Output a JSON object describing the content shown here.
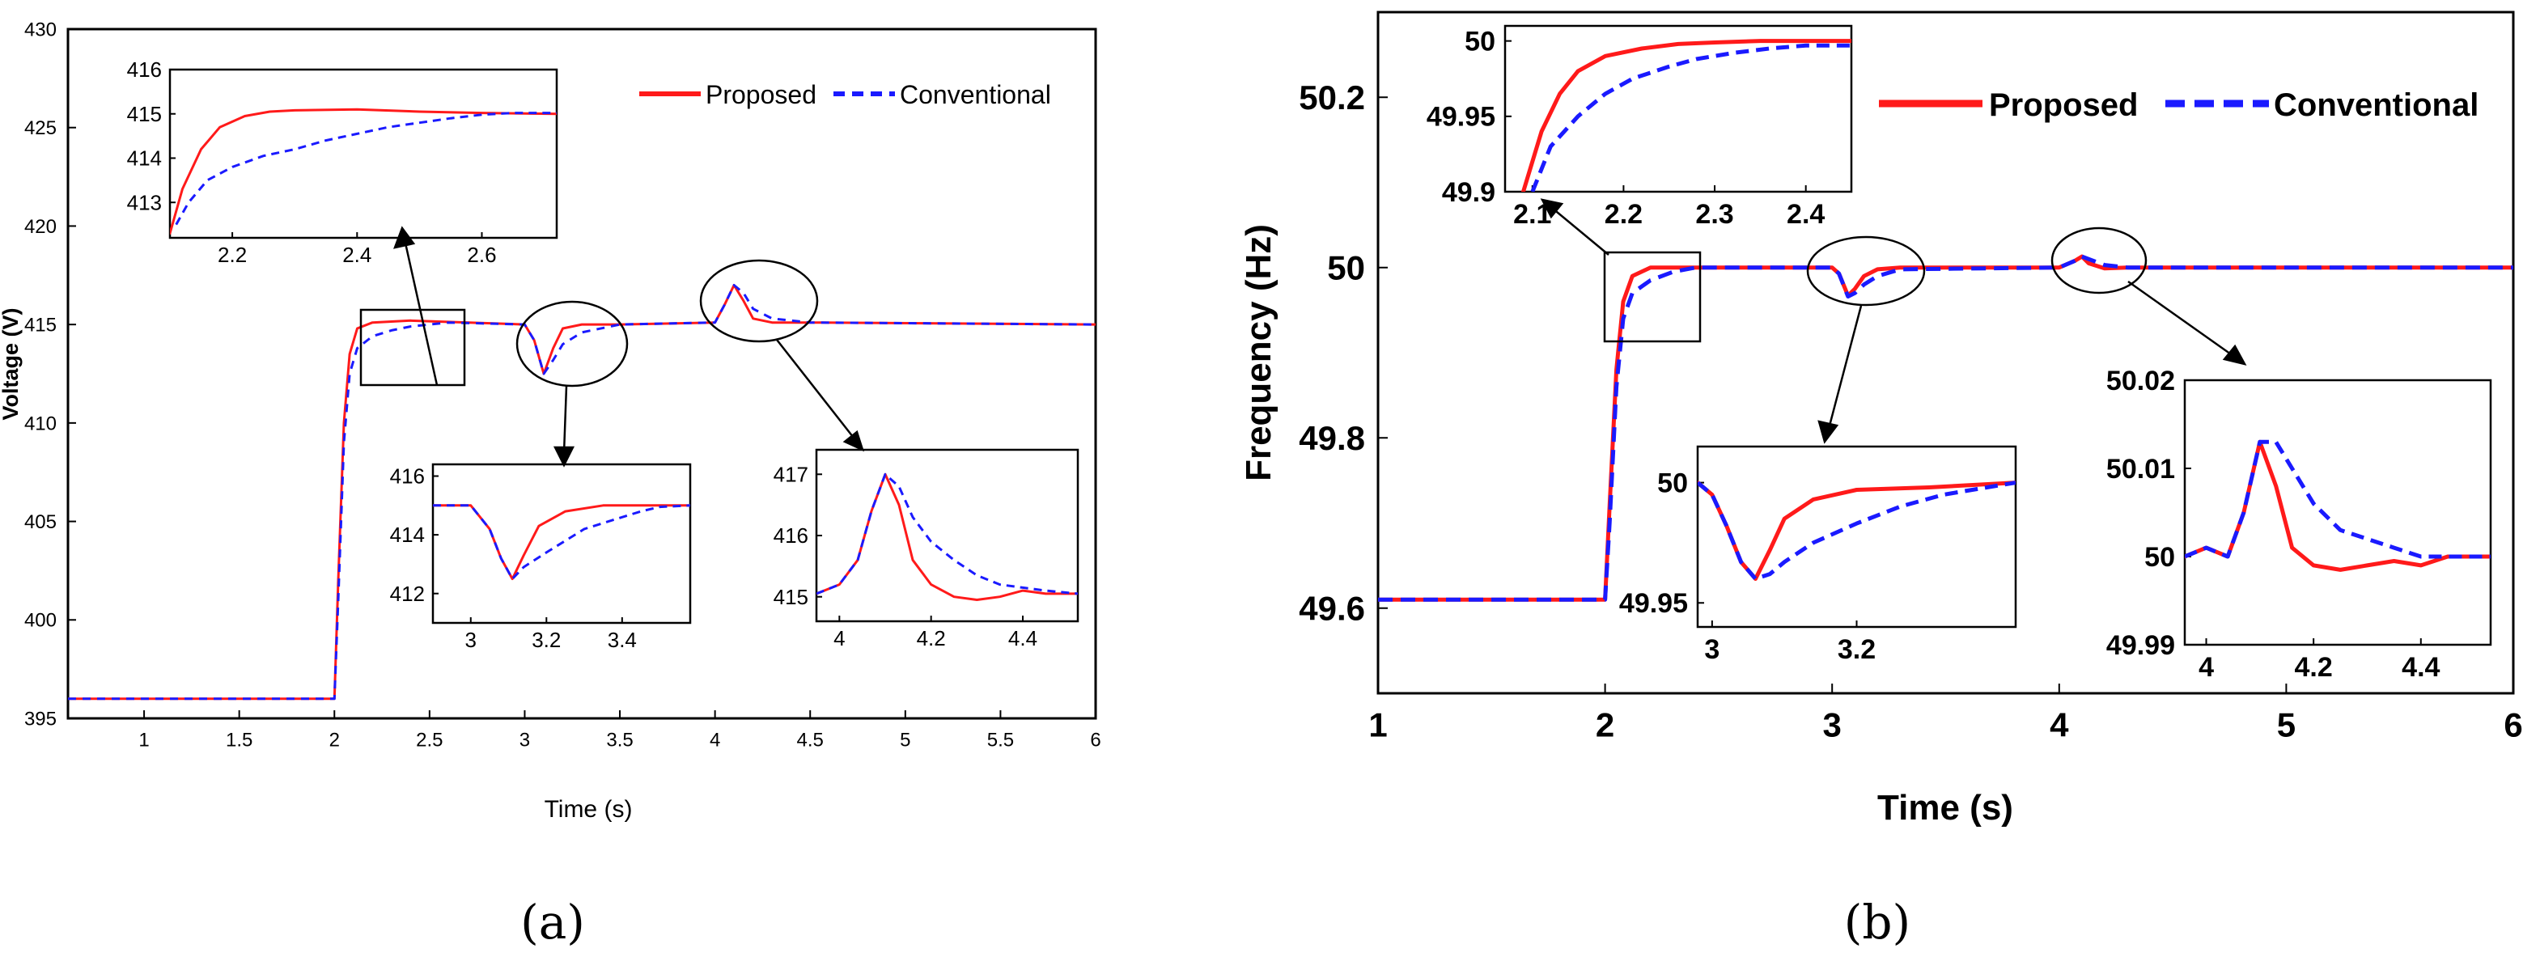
{
  "colors": {
    "proposed": "#ff1a1a",
    "conventional": "#1a1aff",
    "axes": "#000000",
    "background": "#ffffff"
  },
  "legend": {
    "proposed": "Proposed",
    "conventional": "Conventional"
  },
  "panel_a": {
    "caption": "(a)",
    "xlabel": "Time (s)",
    "ylabel": "Voltage (V)"
  },
  "panel_b": {
    "caption": "(b)",
    "xlabel": "Time (s)",
    "ylabel": "Frequency (Hz)"
  },
  "chart_data": [
    {
      "id": "a-main",
      "type": "line",
      "title": "",
      "xlabel": "Time (s)",
      "ylabel": "Voltage (V)",
      "xlim": [
        0.6,
        6
      ],
      "ylim": [
        395,
        430
      ],
      "xticks": [
        1,
        1.5,
        2,
        2.5,
        3,
        3.5,
        4,
        4.5,
        5,
        5.5,
        6
      ],
      "xtick_labels": [
        "1",
        "1.5",
        "2",
        "2.5",
        "3",
        "3.5",
        "4",
        "4.5",
        "5",
        "5.5",
        "6"
      ],
      "yticks": [
        395,
        400,
        405,
        410,
        415,
        420,
        425,
        430
      ],
      "ytick_labels": [
        "395",
        "400",
        "405",
        "410",
        "415",
        "420",
        "425",
        "430"
      ],
      "legend_position": "top-right",
      "series": [
        {
          "name": "Proposed",
          "x": [
            0.6,
            2.0,
            2.02,
            2.05,
            2.08,
            2.12,
            2.2,
            2.4,
            3.0,
            3.05,
            3.1,
            3.15,
            3.2,
            3.3,
            3.5,
            4.0,
            4.05,
            4.1,
            4.15,
            4.2,
            4.3,
            4.5,
            6.0
          ],
          "y": [
            396,
            396,
            402,
            410,
            413.5,
            414.8,
            415.1,
            415.2,
            415,
            414.2,
            412.5,
            413.8,
            414.8,
            415,
            415,
            415.1,
            416,
            417,
            416.2,
            415.3,
            415.1,
            415.1,
            415
          ]
        },
        {
          "name": "Conventional",
          "x": [
            0.6,
            2.0,
            2.02,
            2.05,
            2.08,
            2.12,
            2.2,
            2.3,
            2.4,
            2.6,
            3.0,
            3.05,
            3.1,
            3.15,
            3.2,
            3.3,
            3.5,
            4.0,
            4.05,
            4.1,
            4.15,
            4.2,
            4.3,
            4.5,
            6.0
          ],
          "y": [
            396,
            396,
            401,
            409,
            412.5,
            413.8,
            414.4,
            414.7,
            414.9,
            415.1,
            415,
            414.2,
            412.5,
            413.2,
            414,
            414.6,
            415,
            415.1,
            416,
            417,
            416.6,
            415.8,
            415.3,
            415.1,
            415
          ]
        }
      ]
    },
    {
      "id": "a-inset-1",
      "type": "line",
      "title": "",
      "xlabel": "",
      "ylabel": "",
      "xlim": [
        2.1,
        2.72
      ],
      "ylim": [
        412.2,
        416
      ],
      "xticks": [
        2.2,
        2.4,
        2.6
      ],
      "xtick_labels": [
        "2.2",
        "2.4",
        "2.6"
      ],
      "yticks": [
        413,
        414,
        415,
        416
      ],
      "ytick_labels": [
        "413",
        "414",
        "415",
        "416"
      ],
      "series": [
        {
          "name": "Proposed",
          "x": [
            2.1,
            2.12,
            2.15,
            2.18,
            2.22,
            2.26,
            2.3,
            2.4,
            2.5,
            2.6,
            2.72
          ],
          "y": [
            412.3,
            413.3,
            414.2,
            414.7,
            414.95,
            415.05,
            415.08,
            415.1,
            415.05,
            415.02,
            415
          ]
        },
        {
          "name": "Conventional",
          "x": [
            2.11,
            2.13,
            2.16,
            2.2,
            2.25,
            2.3,
            2.35,
            2.4,
            2.45,
            2.5,
            2.55,
            2.6,
            2.65,
            2.72
          ],
          "y": [
            412.5,
            413.0,
            413.5,
            413.8,
            414.05,
            414.2,
            414.4,
            414.55,
            414.7,
            414.8,
            414.9,
            414.98,
            415.02,
            415.02
          ]
        }
      ]
    },
    {
      "id": "a-inset-2",
      "type": "line",
      "title": "",
      "xlabel": "",
      "ylabel": "",
      "xlim": [
        2.9,
        3.58
      ],
      "ylim": [
        411,
        416.4
      ],
      "xticks": [
        3,
        3.2,
        3.4
      ],
      "xtick_labels": [
        "3",
        "3.2",
        "3.4"
      ],
      "yticks": [
        412,
        414,
        416
      ],
      "ytick_labels": [
        "412",
        "414",
        "416"
      ],
      "series": [
        {
          "name": "Proposed",
          "x": [
            2.9,
            3.0,
            3.05,
            3.08,
            3.11,
            3.14,
            3.18,
            3.25,
            3.35,
            3.58
          ],
          "y": [
            415,
            415,
            414.2,
            413.2,
            412.5,
            413.3,
            414.3,
            414.8,
            415,
            415
          ]
        },
        {
          "name": "Conventional",
          "x": [
            2.9,
            3.0,
            3.05,
            3.08,
            3.11,
            3.14,
            3.2,
            3.25,
            3.3,
            3.35,
            3.4,
            3.45,
            3.5,
            3.58
          ],
          "y": [
            415,
            415,
            414.2,
            413.2,
            412.5,
            412.9,
            413.4,
            413.8,
            414.2,
            414.4,
            414.6,
            414.8,
            414.95,
            415
          ]
        }
      ]
    },
    {
      "id": "a-inset-3",
      "type": "line",
      "title": "",
      "xlabel": "",
      "ylabel": "",
      "xlim": [
        3.95,
        4.52
      ],
      "ylim": [
        414.6,
        417.4
      ],
      "xticks": [
        4,
        4.2,
        4.4
      ],
      "xtick_labels": [
        "4",
        "4.2",
        "4.4"
      ],
      "yticks": [
        415,
        416,
        417
      ],
      "ytick_labels": [
        "415",
        "416",
        "417"
      ],
      "series": [
        {
          "name": "Proposed",
          "x": [
            3.95,
            4.0,
            4.04,
            4.07,
            4.1,
            4.13,
            4.16,
            4.2,
            4.25,
            4.3,
            4.35,
            4.4,
            4.45,
            4.52
          ],
          "y": [
            415.05,
            415.2,
            415.6,
            416.4,
            417,
            416.5,
            415.6,
            415.2,
            415.0,
            414.95,
            415.0,
            415.1,
            415.05,
            415.05
          ]
        },
        {
          "name": "Conventional",
          "x": [
            3.95,
            4.0,
            4.04,
            4.07,
            4.1,
            4.13,
            4.16,
            4.2,
            4.25,
            4.3,
            4.35,
            4.4,
            4.45,
            4.52
          ],
          "y": [
            415.05,
            415.2,
            415.6,
            416.4,
            417,
            416.8,
            416.3,
            415.9,
            415.6,
            415.35,
            415.2,
            415.15,
            415.1,
            415.05
          ]
        }
      ]
    },
    {
      "id": "b-main",
      "type": "line",
      "title": "",
      "xlabel": "Time (s)",
      "ylabel": "Frequency (Hz)",
      "xlim": [
        1,
        6
      ],
      "ylim": [
        49.5,
        50.3
      ],
      "xticks": [
        1,
        2,
        3,
        4,
        5,
        6
      ],
      "xtick_labels": [
        "1",
        "2",
        "3",
        "4",
        "5",
        "6"
      ],
      "yticks": [
        49.6,
        49.8,
        50,
        50.2
      ],
      "ytick_labels": [
        "49.6",
        "49.8",
        "50",
        "50.2"
      ],
      "legend_position": "top-right",
      "series": [
        {
          "name": "Proposed",
          "x": [
            1.0,
            2.0,
            2.02,
            2.05,
            2.08,
            2.12,
            2.2,
            2.4,
            3.0,
            3.03,
            3.07,
            3.1,
            3.14,
            3.2,
            3.3,
            4.0,
            4.07,
            4.1,
            4.13,
            4.2,
            4.3,
            6.0
          ],
          "y": [
            49.61,
            49.61,
            49.72,
            49.88,
            49.96,
            49.99,
            50.0,
            50.0,
            50.0,
            49.993,
            49.967,
            49.975,
            49.99,
            49.998,
            50.0,
            50.0,
            50.008,
            50.013,
            50.005,
            49.999,
            50.0,
            50.0
          ]
        },
        {
          "name": "Conventional",
          "x": [
            1.0,
            2.0,
            2.02,
            2.05,
            2.08,
            2.12,
            2.2,
            2.3,
            2.4,
            3.0,
            3.03,
            3.07,
            3.1,
            3.14,
            3.2,
            3.3,
            4.0,
            4.07,
            4.1,
            4.14,
            4.2,
            4.3,
            6.0
          ],
          "y": [
            49.61,
            49.61,
            49.7,
            49.86,
            49.94,
            49.97,
            49.985,
            49.995,
            50.0,
            50.0,
            49.993,
            49.966,
            49.97,
            49.98,
            49.99,
            49.998,
            50.0,
            50.008,
            50.013,
            50.009,
            50.003,
            50.0,
            50.0
          ]
        }
      ]
    },
    {
      "id": "b-inset-1",
      "type": "line",
      "title": "",
      "xlabel": "",
      "ylabel": "",
      "xlim": [
        2.07,
        2.45
      ],
      "ylim": [
        49.9,
        50.01
      ],
      "xticks": [
        2.1,
        2.2,
        2.3,
        2.4
      ],
      "xtick_labels": [
        "2.1",
        "2.2",
        "2.3",
        "2.4"
      ],
      "yticks": [
        49.9,
        49.95,
        50
      ],
      "ytick_labels": [
        "49.9",
        "49.95",
        "50"
      ],
      "series": [
        {
          "name": "Proposed",
          "x": [
            2.09,
            2.11,
            2.13,
            2.15,
            2.18,
            2.22,
            2.26,
            2.3,
            2.35,
            2.4,
            2.45
          ],
          "y": [
            49.9,
            49.94,
            49.965,
            49.98,
            49.99,
            49.995,
            49.998,
            49.999,
            50.0,
            50.0,
            50.0
          ]
        },
        {
          "name": "Conventional",
          "x": [
            2.1,
            2.12,
            2.15,
            2.18,
            2.21,
            2.25,
            2.28,
            2.32,
            2.36,
            2.4,
            2.45
          ],
          "y": [
            49.9,
            49.93,
            49.95,
            49.965,
            49.975,
            49.983,
            49.988,
            49.992,
            49.995,
            49.997,
            49.997
          ]
        }
      ]
    },
    {
      "id": "b-inset-2",
      "type": "line",
      "title": "",
      "xlabel": "",
      "ylabel": "",
      "xlim": [
        2.98,
        3.42
      ],
      "ylim": [
        49.94,
        50.015
      ],
      "xticks": [
        3,
        3.2
      ],
      "xtick_labels": [
        "3",
        "3.2"
      ],
      "yticks": [
        49.95,
        50
      ],
      "ytick_labels": [
        "49.95",
        "50"
      ],
      "series": [
        {
          "name": "Proposed",
          "x": [
            2.98,
            3.0,
            3.02,
            3.04,
            3.06,
            3.08,
            3.1,
            3.14,
            3.2,
            3.3,
            3.42
          ],
          "y": [
            50.0,
            49.995,
            49.982,
            49.967,
            49.96,
            49.972,
            49.985,
            49.993,
            49.997,
            49.998,
            50.0
          ]
        },
        {
          "name": "Conventional",
          "x": [
            2.98,
            3.0,
            3.02,
            3.04,
            3.06,
            3.08,
            3.1,
            3.14,
            3.2,
            3.26,
            3.32,
            3.38,
            3.42
          ],
          "y": [
            50.0,
            49.995,
            49.982,
            49.967,
            49.96,
            49.962,
            49.967,
            49.975,
            49.983,
            49.99,
            49.995,
            49.998,
            50.0
          ]
        }
      ]
    },
    {
      "id": "b-inset-3",
      "type": "line",
      "title": "",
      "xlabel": "",
      "ylabel": "",
      "xlim": [
        3.96,
        4.53
      ],
      "ylim": [
        49.99,
        50.02
      ],
      "xticks": [
        4,
        4.2,
        4.4
      ],
      "xtick_labels": [
        "4",
        "4.2",
        "4.4"
      ],
      "yticks": [
        49.99,
        50,
        50.01,
        50.02
      ],
      "ytick_labels": [
        "49.99",
        "50",
        "50.01",
        "50.02"
      ],
      "series": [
        {
          "name": "Proposed",
          "x": [
            3.96,
            4.0,
            4.04,
            4.07,
            4.1,
            4.13,
            4.16,
            4.2,
            4.25,
            4.3,
            4.35,
            4.4,
            4.45,
            4.53
          ],
          "y": [
            50.0,
            50.001,
            50.0,
            50.005,
            50.013,
            50.008,
            50.001,
            49.999,
            49.9985,
            49.999,
            49.9995,
            49.999,
            50.0,
            50.0
          ]
        },
        {
          "name": "Conventional",
          "x": [
            3.96,
            4.0,
            4.04,
            4.07,
            4.1,
            4.13,
            4.16,
            4.2,
            4.25,
            4.3,
            4.35,
            4.4,
            4.45,
            4.53
          ],
          "y": [
            50.0,
            50.001,
            50.0,
            50.005,
            50.013,
            50.013,
            50.01,
            50.006,
            50.003,
            50.002,
            50.001,
            50.0,
            50.0,
            50.0
          ]
        }
      ]
    }
  ]
}
